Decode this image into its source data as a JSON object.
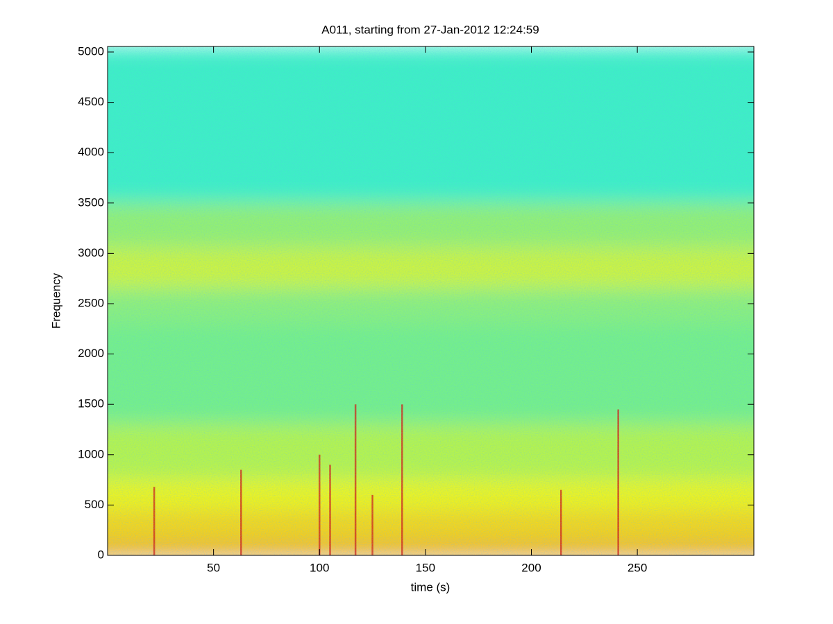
{
  "chart_data": {
    "type": "spectrogram",
    "title": "A011, starting from 27-Jan-2012 12:24:59",
    "xlabel": "time (s)",
    "ylabel": "Frequency",
    "xlim": [
      0,
      305
    ],
    "ylim": [
      0,
      5055
    ],
    "xticks": [
      50,
      100,
      150,
      200,
      250
    ],
    "yticks": [
      0,
      500,
      1000,
      1500,
      2000,
      2500,
      3000,
      3500,
      4000,
      4500,
      5000
    ],
    "bands": [
      {
        "from": 0,
        "to": 100,
        "color": "#ee8a14"
      },
      {
        "from": 100,
        "to": 450,
        "color": "#f4d41c"
      },
      {
        "from": 450,
        "to": 750,
        "color": "#eef51e"
      },
      {
        "from": 750,
        "to": 1300,
        "color": "#b6f44c"
      },
      {
        "from": 1300,
        "to": 2300,
        "color": "#74f088"
      },
      {
        "from": 2300,
        "to": 2650,
        "color": "#8cf07a"
      },
      {
        "from": 2650,
        "to": 3050,
        "color": "#cef43c"
      },
      {
        "from": 3050,
        "to": 3500,
        "color": "#94f070"
      },
      {
        "from": 3500,
        "to": 5055,
        "color": "#3ef0c4"
      }
    ],
    "spikes": [
      {
        "time": 22,
        "freq": 680
      },
      {
        "time": 63,
        "freq": 850
      },
      {
        "time": 100,
        "freq": 1000
      },
      {
        "time": 105,
        "freq": 900
      },
      {
        "time": 117,
        "freq": 1500
      },
      {
        "time": 125,
        "freq": 600
      },
      {
        "time": 139,
        "freq": 1500
      },
      {
        "time": 214,
        "freq": 650
      },
      {
        "time": 241,
        "freq": 1450
      }
    ],
    "spike_color": "#d42010"
  }
}
